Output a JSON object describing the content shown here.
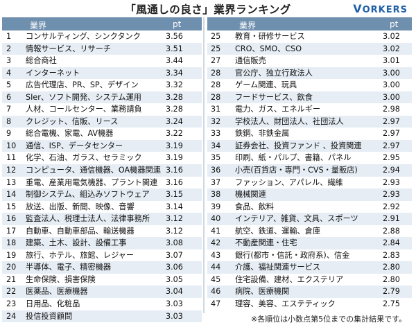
{
  "title": "「風通しの良さ」業界ランキング",
  "brand": {
    "first": "V",
    "rest": "ORKERS"
  },
  "headers": {
    "industry": "業界",
    "pt": "pt"
  },
  "left_rows": [
    {
      "rank": "1",
      "industry": "コンサルティング、シンクタンク",
      "pt": "3.56"
    },
    {
      "rank": "2",
      "industry": "情報サービス、リサーチ",
      "pt": "3.51"
    },
    {
      "rank": "3",
      "industry": "総合商社",
      "pt": "3.44"
    },
    {
      "rank": "4",
      "industry": "インターネット",
      "pt": "3.34"
    },
    {
      "rank": "5",
      "industry": "広告代理店、PR、SP、デザイン",
      "pt": "3.32"
    },
    {
      "rank": "6",
      "industry": "SIer、ソフト開発、システム運用",
      "pt": "3.28"
    },
    {
      "rank": "7",
      "industry": "人材、コールセンター、業務請負",
      "pt": "3.28"
    },
    {
      "rank": "8",
      "industry": "クレジット、信販、リース",
      "pt": "3.24"
    },
    {
      "rank": "9",
      "industry": "総合電機、家電、AV機器",
      "pt": "3.22"
    },
    {
      "rank": "10",
      "industry": "通信、ISP、データセンター",
      "pt": "3.19"
    },
    {
      "rank": "11",
      "industry": "化学、石油、ガラス、セラミック",
      "pt": "3.19"
    },
    {
      "rank": "12",
      "industry": "コンピュータ、通信機器、OA機器関連",
      "pt": "3.16"
    },
    {
      "rank": "13",
      "industry": "重電、産業用電気機器、プラント関連",
      "pt": "3.16"
    },
    {
      "rank": "14",
      "industry": "制御システム、組込みソフトウェア",
      "pt": "3.15"
    },
    {
      "rank": "15",
      "industry": "放送、出版、新聞、映像、音響",
      "pt": "3.14"
    },
    {
      "rank": "16",
      "industry": "監査法人、税理士法人、法律事務所",
      "pt": "3.12"
    },
    {
      "rank": "17",
      "industry": "自動車、自動車部品、輸送機器",
      "pt": "3.12"
    },
    {
      "rank": "18",
      "industry": "建築、土木、設計、設備工事",
      "pt": "3.08"
    },
    {
      "rank": "19",
      "industry": "旅行、ホテル、旅館、レジャー",
      "pt": "3.07"
    },
    {
      "rank": "20",
      "industry": "半導体、電子、精密機器",
      "pt": "3.06"
    },
    {
      "rank": "21",
      "industry": "生命保険、損害保険",
      "pt": "3.05"
    },
    {
      "rank": "22",
      "industry": "医薬品、医療機器",
      "pt": "3.04"
    },
    {
      "rank": "23",
      "industry": "日用品、化粧品",
      "pt": "3.03"
    },
    {
      "rank": "24",
      "industry": "投信投資顧問",
      "pt": "3.03"
    }
  ],
  "right_rows": [
    {
      "rank": "25",
      "industry": "教育・研修サービス",
      "pt": "3.02"
    },
    {
      "rank": "25",
      "industry": "CRO、SMO、CSO",
      "pt": "3.02"
    },
    {
      "rank": "27",
      "industry": "通信販売",
      "pt": "3.01"
    },
    {
      "rank": "28",
      "industry": "官公庁、独立行政法人",
      "pt": "3.00"
    },
    {
      "rank": "28",
      "industry": "ゲーム関連、玩具",
      "pt": "3.00"
    },
    {
      "rank": "28",
      "industry": "フードサービス、飲食",
      "pt": "3.00"
    },
    {
      "rank": "31",
      "industry": "電力、ガス、エネルギー",
      "pt": "2.98"
    },
    {
      "rank": "32",
      "industry": "学校法人、財団法人、社団法人",
      "pt": "2.97"
    },
    {
      "rank": "33",
      "industry": "鉄鋼、非鉄金属",
      "pt": "2.97"
    },
    {
      "rank": "34",
      "industry": "証券会社、投資ファンド 、投資関連",
      "pt": "2.97"
    },
    {
      "rank": "35",
      "industry": "印刷、紙・パルプ、書籍、パネル",
      "pt": "2.95"
    },
    {
      "rank": "36",
      "industry": "小売(百貨店・専門・CVS・量販店)",
      "pt": "2.94"
    },
    {
      "rank": "37",
      "industry": "ファッション、アパレル、繊維",
      "pt": "2.93"
    },
    {
      "rank": "38",
      "industry": "機械関連",
      "pt": "2.93"
    },
    {
      "rank": "39",
      "industry": "食品、飲料",
      "pt": "2.92"
    },
    {
      "rank": "40",
      "industry": "インテリア、雑貨、文具、スポーツ",
      "pt": "2.91"
    },
    {
      "rank": "41",
      "industry": "航空、鉄道、運輸、倉庫",
      "pt": "2.88"
    },
    {
      "rank": "42",
      "industry": "不動産関連・住宅",
      "pt": "2.84"
    },
    {
      "rank": "43",
      "industry": "銀行(都市・信託・政府系)、信金",
      "pt": "2.83"
    },
    {
      "rank": "44",
      "industry": "介護、福祉関連サービス",
      "pt": "2.80"
    },
    {
      "rank": "45",
      "industry": "住宅設備、建材、エクステリア",
      "pt": "2.80"
    },
    {
      "rank": "46",
      "industry": "病院、医療機関",
      "pt": "2.79"
    },
    {
      "rank": "47",
      "industry": "理容、美容、エステティック",
      "pt": "2.75"
    }
  ],
  "note": "※各順位は小数点第5位までの集計結果です。"
}
